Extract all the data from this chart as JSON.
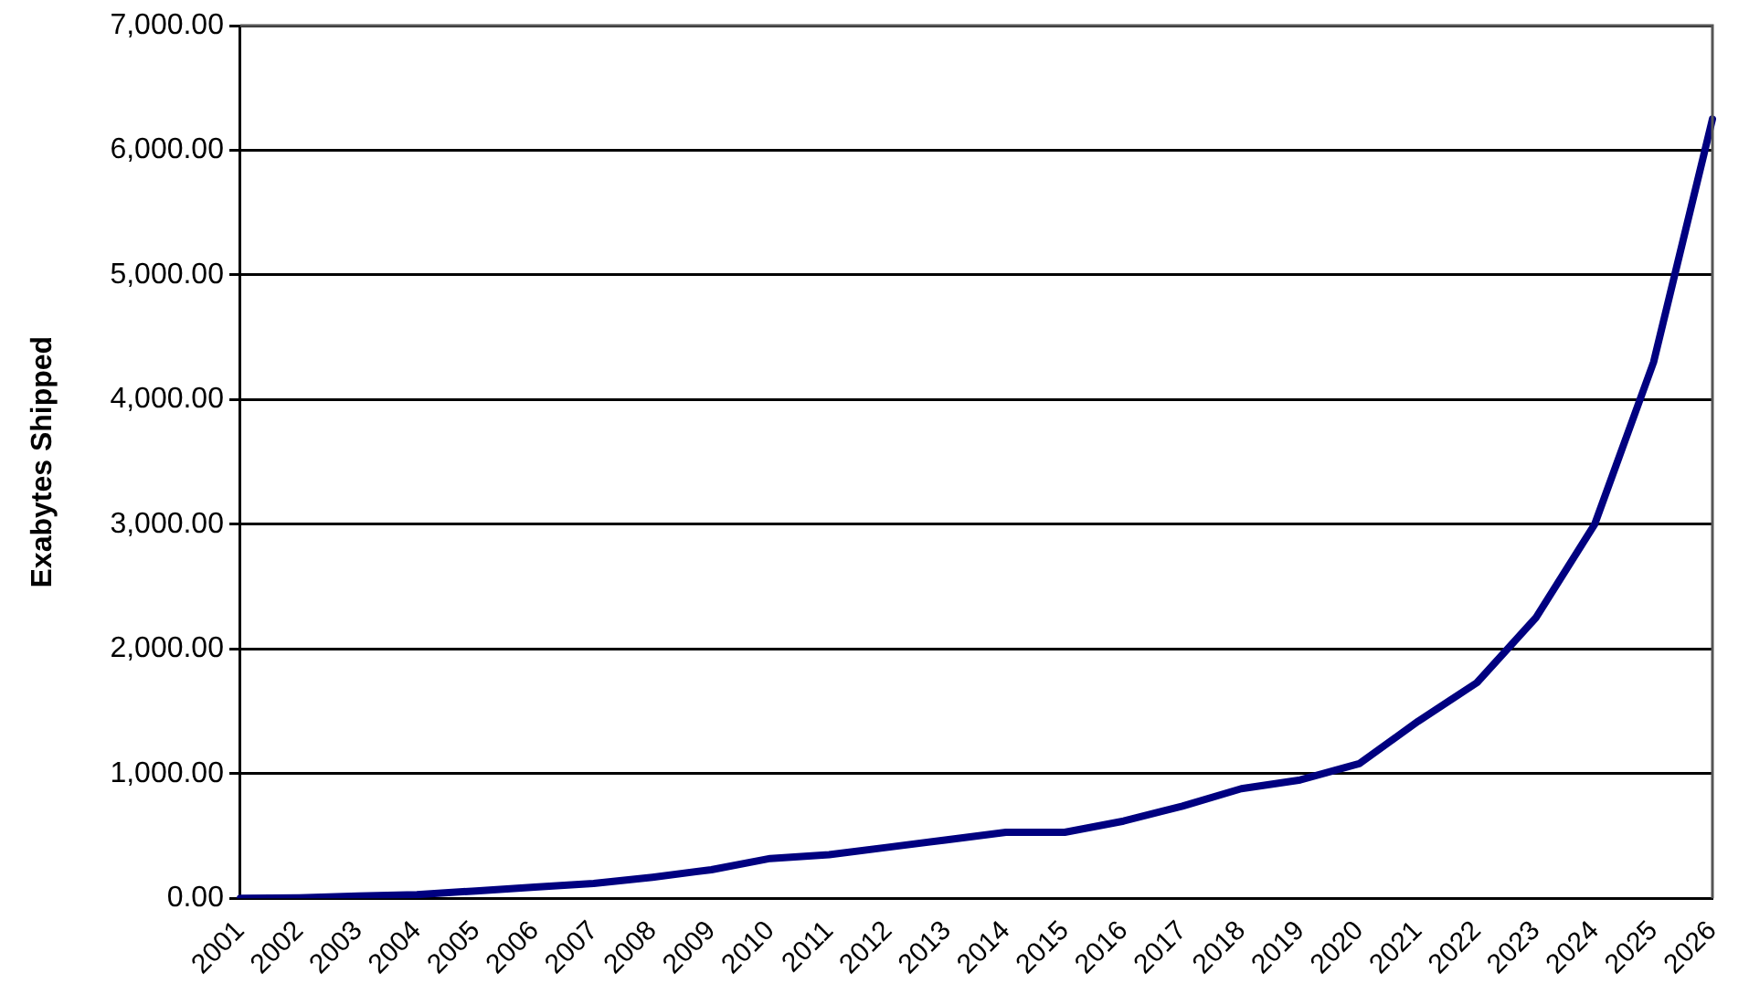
{
  "chart_data": {
    "type": "line",
    "ylabel": "Exabytes Shipped",
    "categories": [
      "2001",
      "2002",
      "2003",
      "2004",
      "2005",
      "2006",
      "2007",
      "2008",
      "2009",
      "2010",
      "2011",
      "2012",
      "2013",
      "2014",
      "2015",
      "2016",
      "2017",
      "2018",
      "2019",
      "2020",
      "2021",
      "2022",
      "2023",
      "2024",
      "2025",
      "2026"
    ],
    "series": [
      {
        "color": "#000080",
        "values": [
          0,
          5,
          20,
          30,
          60,
          90,
          120,
          170,
          230,
          320,
          350,
          410,
          470,
          530,
          530,
          620,
          740,
          880,
          950,
          1080,
          1420,
          1730,
          2250,
          3000,
          4300,
          6250
        ]
      }
    ],
    "ylim": [
      0,
      7000
    ],
    "yticks": [
      {
        "value": 0,
        "label": "0.00"
      },
      {
        "value": 1000,
        "label": "1,000.00"
      },
      {
        "value": 2000,
        "label": "2,000.00"
      },
      {
        "value": 3000,
        "label": "3,000.00"
      },
      {
        "value": 4000,
        "label": "4,000.00"
      },
      {
        "value": 5000,
        "label": "5,000.00"
      },
      {
        "value": 6000,
        "label": "6,000.00"
      },
      {
        "value": 7000,
        "label": "7,000.00"
      }
    ],
    "grid": "y",
    "legend": false,
    "marker": "none",
    "line_style": "solid"
  }
}
